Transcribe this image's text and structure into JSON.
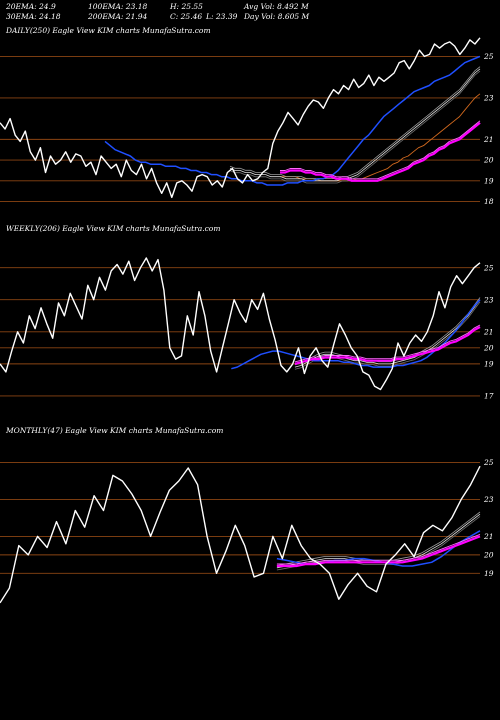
{
  "stats": {
    "ema20": "20EMA: 24.9",
    "ema100": "100EMA: 23.18",
    "high": "H: 25.55",
    "avgvol": "Avg Vol: 8.492  M",
    "ema30": "30EMA: 24.18",
    "ema200": "200EMA: 21.94",
    "close": "C: 25.46",
    "low": "L: 23.39",
    "dayvol": "Day Vol: 8.605 M"
  },
  "colors": {
    "background": "#000000",
    "price": "#ffffff",
    "gridline": "#8b4513",
    "ema_short": "#1f4fff",
    "ema_long": "#ff00ff",
    "ema_mid": "#c0c0c0",
    "ema_orange": "#d2691e"
  },
  "chart_data": [
    {
      "type": "line",
      "label": "DAILY(250) Eagle  View  KIM charts MunafaSutra.com",
      "ylim": [
        17.4,
        25.6
      ],
      "levels": [
        25,
        23,
        21,
        20,
        19,
        18
      ],
      "tick_labels": [
        "25",
        "23",
        "21",
        "20",
        "19",
        "18"
      ],
      "series": [
        {
          "role": "price",
          "values": [
            21.8,
            21.5,
            22.0,
            21.2,
            20.9,
            21.4,
            20.4,
            20.0,
            20.6,
            19.4,
            20.2,
            19.8,
            20.0,
            20.4,
            19.9,
            20.3,
            20.2,
            19.7,
            19.9,
            19.3,
            20.2,
            19.9,
            19.6,
            19.8,
            19.2,
            20.0,
            19.5,
            19.3,
            19.8,
            19.1,
            19.6,
            18.9,
            18.4,
            18.9,
            18.2,
            18.9,
            19.0,
            18.8,
            18.5,
            19.2,
            19.3,
            19.2,
            18.8,
            19.0,
            18.7,
            19.4,
            19.6,
            19.1,
            18.9,
            19.3,
            19.0,
            19.1,
            19.4,
            19.6,
            20.8,
            21.4,
            21.8,
            22.3,
            22.0,
            21.7,
            22.2,
            22.6,
            22.9,
            22.8,
            22.5,
            23.0,
            23.4,
            23.2,
            23.6,
            23.4,
            23.9,
            23.5,
            23.7,
            24.1,
            23.6,
            24.0,
            23.8,
            24.0,
            24.2,
            24.7,
            24.8,
            24.4,
            24.8,
            25.3,
            25.0,
            25.1,
            25.6,
            25.4,
            25.6,
            25.7,
            25.5,
            25.1,
            25.4,
            25.8,
            25.6,
            25.9
          ]
        },
        {
          "role": "ema_short",
          "values": [
            20.9,
            20.7,
            20.5,
            20.4,
            20.3,
            20.2,
            20.0,
            19.9,
            19.9,
            19.8,
            19.8,
            19.8,
            19.7,
            19.7,
            19.7,
            19.6,
            19.6,
            19.5,
            19.5,
            19.4,
            19.4,
            19.3,
            19.3,
            19.2,
            19.2,
            19.1,
            19.1,
            19.0,
            19.0,
            19.0,
            18.9,
            18.9,
            18.8,
            18.8,
            18.8,
            18.8,
            18.9,
            18.9,
            18.9,
            19.0,
            19.0,
            19.0,
            19.1,
            19.1,
            19.2,
            19.3,
            19.5,
            19.8,
            20.1,
            20.4,
            20.7,
            21.0,
            21.2,
            21.5,
            21.8,
            22.1,
            22.3,
            22.5,
            22.7,
            22.9,
            23.1,
            23.3,
            23.4,
            23.5,
            23.6,
            23.8,
            23.9,
            24.0,
            24.1,
            24.3,
            24.5,
            24.7,
            24.8,
            24.9,
            25.0
          ]
        },
        {
          "role": "ema_mid",
          "values": [
            19.6,
            19.5,
            19.5,
            19.4,
            19.4,
            19.3,
            19.3,
            19.3,
            19.2,
            19.2,
            19.2,
            19.1,
            19.1,
            19.1,
            19.1,
            19.0,
            19.0,
            19.0,
            19.0,
            19.0,
            19.0,
            19.0,
            19.1,
            19.1,
            19.2,
            19.3,
            19.5,
            19.7,
            19.9,
            20.1,
            20.3,
            20.5,
            20.7,
            20.9,
            21.1,
            21.3,
            21.5,
            21.7,
            21.9,
            22.1,
            22.3,
            22.5,
            22.7,
            22.9,
            23.1,
            23.3,
            23.6,
            23.9,
            24.2,
            24.4
          ]
        },
        {
          "role": "ema_orange",
          "values": [
            19.2,
            19.2,
            19.2,
            19.2,
            19.1,
            19.1,
            19.1,
            19.1,
            19.0,
            19.0,
            19.0,
            19.0,
            19.0,
            19.0,
            19.0,
            19.1,
            19.1,
            19.2,
            19.3,
            19.4,
            19.5,
            19.6,
            19.8,
            19.9,
            20.1,
            20.2,
            20.4,
            20.6,
            20.7,
            20.9,
            21.1,
            21.3,
            21.5,
            21.7,
            21.9,
            22.1,
            22.4,
            22.7,
            23.0,
            23.2
          ]
        },
        {
          "role": "ema_long",
          "values": [
            19.4,
            19.4,
            19.5,
            19.5,
            19.5,
            19.4,
            19.4,
            19.3,
            19.3,
            19.2,
            19.2,
            19.1,
            19.1,
            19.1,
            19.0,
            19.0,
            19.0,
            19.0,
            19.0,
            19.0,
            19.1,
            19.2,
            19.3,
            19.4,
            19.5,
            19.6,
            19.8,
            19.9,
            20.0,
            20.2,
            20.3,
            20.5,
            20.6,
            20.8,
            20.9,
            21.0,
            21.2,
            21.4,
            21.6,
            21.8
          ]
        }
      ]
    },
    {
      "type": "line",
      "label": "WEEKLY(206) Eagle  View  KIM charts MunafaSutra.com",
      "ylim": [
        16.0,
        26.6
      ],
      "levels": [
        25,
        23,
        21,
        20,
        19,
        17
      ],
      "tick_labels": [
        "25",
        "23",
        "21",
        "20",
        "19",
        "17"
      ],
      "series": [
        {
          "role": "price",
          "values": [
            19.0,
            18.5,
            19.8,
            21.0,
            20.3,
            22.0,
            21.2,
            22.5,
            21.5,
            20.6,
            22.8,
            22.0,
            23.4,
            22.6,
            21.8,
            23.9,
            23.0,
            24.4,
            23.6,
            24.8,
            25.2,
            24.6,
            25.4,
            24.2,
            25.0,
            25.6,
            24.8,
            25.5,
            23.6,
            20.0,
            19.3,
            19.5,
            22.0,
            20.8,
            23.5,
            22.0,
            19.8,
            18.5,
            20.0,
            21.5,
            23.0,
            22.2,
            21.6,
            23.0,
            22.4,
            23.4,
            21.8,
            20.5,
            18.9,
            18.5,
            19.0,
            20.0,
            18.4,
            19.5,
            20.0,
            19.2,
            18.8,
            20.2,
            21.5,
            20.8,
            20.0,
            19.5,
            18.5,
            18.3,
            17.6,
            17.4,
            18.0,
            18.7,
            20.3,
            19.5,
            20.3,
            20.8,
            20.4,
            21.0,
            22.0,
            23.5,
            22.5,
            23.8,
            24.5,
            24.0,
            24.5,
            25.0,
            25.3
          ]
        },
        {
          "role": "ema_short",
          "values": [
            18.7,
            18.8,
            19.0,
            19.2,
            19.4,
            19.6,
            19.7,
            19.8,
            19.8,
            19.7,
            19.6,
            19.5,
            19.4,
            19.3,
            19.2,
            19.2,
            19.2,
            19.2,
            19.2,
            19.1,
            19.1,
            19.0,
            18.9,
            18.9,
            18.8,
            18.8,
            18.8,
            18.8,
            18.9,
            18.9,
            19.0,
            19.1,
            19.2,
            19.4,
            19.7,
            20.0,
            20.3,
            20.7,
            21.1,
            21.6,
            22.1,
            22.6,
            23.0
          ]
        },
        {
          "role": "ema_mid",
          "values": [
            18.8,
            18.9,
            19.1,
            19.3,
            19.5,
            19.6,
            19.6,
            19.5,
            19.4,
            19.3,
            19.2,
            19.2,
            19.1,
            19.1,
            19.0,
            19.0,
            19.0,
            19.1,
            19.2,
            19.3,
            19.4,
            19.6,
            19.8,
            20.0,
            20.3,
            20.6,
            20.9,
            21.2,
            21.6,
            22.0,
            22.5,
            23.0
          ]
        },
        {
          "role": "ema_long",
          "values": [
            19.0,
            19.1,
            19.2,
            19.3,
            19.3,
            19.4,
            19.4,
            19.4,
            19.4,
            19.4,
            19.3,
            19.3,
            19.2,
            19.2,
            19.2,
            19.2,
            19.2,
            19.3,
            19.3,
            19.4,
            19.5,
            19.6,
            19.7,
            19.8,
            19.9,
            20.1,
            20.3,
            20.4,
            20.6,
            20.8,
            21.1,
            21.3
          ]
        }
      ]
    },
    {
      "type": "line",
      "label": "MONTHLY(47) Eagle  View  KIM charts MunafaSutra.com",
      "ylim": [
        16.8,
        26.0
      ],
      "levels": [
        25,
        23,
        21,
        20,
        19
      ],
      "tick_labels": [
        "25",
        "23",
        "21",
        "20",
        "19"
      ],
      "series": [
        {
          "role": "price",
          "values": [
            17.4,
            18.2,
            20.5,
            20.0,
            21.0,
            20.4,
            21.8,
            20.6,
            22.4,
            21.5,
            23.2,
            22.4,
            24.3,
            24.0,
            23.3,
            22.4,
            21.0,
            22.3,
            23.5,
            24.0,
            24.7,
            23.8,
            21.0,
            19.0,
            20.2,
            21.6,
            20.5,
            18.8,
            19.0,
            21.0,
            19.8,
            21.6,
            20.5,
            19.8,
            19.5,
            19.0,
            17.6,
            18.4,
            19.0,
            18.3,
            18.0,
            19.5,
            20.0,
            20.6,
            19.9,
            21.2,
            21.6,
            21.3,
            22.0,
            23.0,
            23.8,
            24.8
          ]
        },
        {
          "role": "ema_short",
          "values": [
            19.8,
            19.7,
            19.6,
            19.5,
            19.5,
            19.6,
            19.7,
            19.7,
            19.8,
            19.8,
            19.7,
            19.6,
            19.5,
            19.4,
            19.4,
            19.5,
            19.6,
            19.9,
            20.3,
            20.7,
            21.0,
            21.3
          ]
        },
        {
          "role": "ema_mid",
          "values": [
            19.3,
            19.4,
            19.5,
            19.6,
            19.7,
            19.8,
            19.8,
            19.8,
            19.7,
            19.6,
            19.6,
            19.6,
            19.6,
            19.7,
            19.8,
            20.0,
            20.3,
            20.6,
            21.0,
            21.4,
            21.8,
            22.2
          ]
        },
        {
          "role": "ema_long",
          "values": [
            19.4,
            19.4,
            19.4,
            19.5,
            19.5,
            19.6,
            19.6,
            19.6,
            19.6,
            19.6,
            19.6,
            19.6,
            19.6,
            19.6,
            19.7,
            19.8,
            20.0,
            20.2,
            20.4,
            20.6,
            20.8,
            21.0
          ]
        }
      ]
    }
  ]
}
